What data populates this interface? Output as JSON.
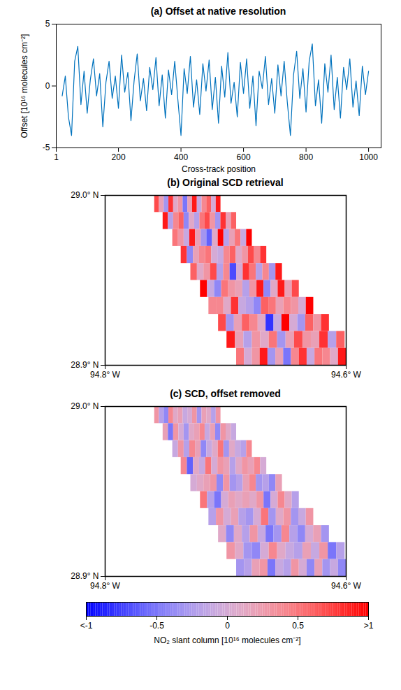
{
  "chart_data": [
    {
      "type": "line",
      "title": "(a) Offset at native resolution",
      "xlabel": "Cross-track position",
      "ylabel": "Offset [10¹⁶ molecules cm⁻²]",
      "color": "#0072bd",
      "x": [
        20,
        30,
        40,
        50,
        60,
        70,
        80,
        90,
        100,
        110,
        120,
        130,
        140,
        150,
        160,
        170,
        180,
        190,
        200,
        210,
        220,
        230,
        240,
        250,
        260,
        270,
        280,
        290,
        300,
        310,
        320,
        330,
        340,
        350,
        360,
        370,
        380,
        390,
        400,
        410,
        420,
        430,
        440,
        450,
        460,
        470,
        480,
        490,
        500,
        510,
        520,
        530,
        540,
        550,
        560,
        570,
        580,
        590,
        600,
        610,
        620,
        630,
        640,
        650,
        660,
        670,
        680,
        690,
        700,
        710,
        720,
        730,
        740,
        750,
        760,
        770,
        780,
        790,
        800,
        810,
        820,
        830,
        840,
        850,
        860,
        870,
        880,
        890,
        900,
        910,
        920,
        930,
        940,
        950,
        960,
        970,
        980,
        990,
        1000
      ],
      "values": [
        -0.8,
        0.8,
        -2.5,
        -4.0,
        2.0,
        3.2,
        -1.5,
        1.2,
        -2.2,
        0.5,
        2.2,
        -0.8,
        1.0,
        -3.3,
        0.3,
        2.0,
        -1.0,
        0.8,
        -1.8,
        2.5,
        -0.5,
        1.1,
        -2.8,
        0.4,
        2.6,
        -1.2,
        0.6,
        -2.0,
        1.5,
        -0.3,
        2.3,
        -1.6,
        0.9,
        -2.6,
        1.3,
        -0.7,
        2.0,
        -1.1,
        -4.0,
        1.4,
        -0.6,
        2.4,
        -1.7,
        0.5,
        -2.3,
        1.8,
        -0.4,
        2.1,
        -1.9,
        0.7,
        -3.0,
        1.6,
        -0.9,
        2.7,
        -1.4,
        0.3,
        -2.5,
        1.9,
        -0.6,
        2.2,
        -1.8,
        0.8,
        -3.2,
        1.2,
        -0.2,
        2.4,
        -1.5,
        0.6,
        -2.2,
        1.7,
        -0.8,
        2.0,
        -1.3,
        -4.0,
        0.9,
        2.8,
        -1.0,
        1.4,
        -2.1,
        2.0,
        3.4,
        -1.6,
        0.5,
        -3.0,
        1.8,
        -0.5,
        2.5,
        -1.9,
        0.7,
        -2.6,
        1.5,
        -0.3,
        2.2,
        -1.7,
        0.4,
        -2.4,
        1.6,
        -0.7,
        1.2
      ],
      "xlim": [
        1,
        1040
      ],
      "xticks": [
        1,
        200,
        400,
        600,
        800,
        1000
      ],
      "ylim": [
        -5,
        5
      ],
      "yticks": [
        -5,
        0,
        5
      ]
    },
    {
      "type": "heatmap",
      "title": "(b) Original SCD retrieval",
      "xlim": [
        -94.8,
        -94.6
      ],
      "ylim": [
        28.9,
        29.0
      ],
      "xticks": [
        {
          "value": -94.8,
          "label": "94.8° W"
        },
        {
          "value": -94.6,
          "label": "94.6° W"
        }
      ],
      "yticks": [
        {
          "value": 28.9,
          "label": "28.9° N"
        },
        {
          "value": 29.0,
          "label": "29.0° N"
        }
      ],
      "lat_edges": [
        29.0,
        28.99,
        28.98,
        28.97,
        28.96,
        28.95,
        28.94,
        28.93,
        28.92,
        28.91,
        28.9
      ],
      "lon_west": [
        -94.759,
        -94.752,
        -94.744,
        -94.737,
        -94.729,
        -94.721,
        -94.714,
        -94.706,
        -94.699,
        -94.691
      ],
      "lon_east": [
        -94.704,
        -94.691,
        -94.678,
        -94.666,
        -94.653,
        -94.639,
        -94.627,
        -94.614,
        -94.601,
        -94.6
      ],
      "cells": [
        [
          0.7,
          0.2,
          -0.3,
          0.8,
          0.1,
          0.3,
          -0.5,
          0.2,
          0.9,
          -0.1,
          0.4,
          0.6,
          0.0,
          0.9
        ],
        [
          0.9,
          -0.2,
          0.4,
          0.6,
          -0.4,
          0.1,
          -0.2,
          0.5,
          0.7,
          0.3,
          -0.3,
          0.8,
          0.2,
          0.6
        ],
        [
          0.5,
          0.3,
          -0.1,
          0.9,
          0.2,
          -0.3,
          -0.6,
          0.1,
          1.0,
          -0.2,
          0.2,
          0.5,
          -0.1,
          1.1
        ],
        [
          0.8,
          -0.4,
          0.2,
          0.4,
          0.5,
          0.0,
          -0.1,
          0.4,
          0.6,
          0.1,
          0.3,
          0.7,
          0.4,
          0.8
        ],
        [
          0.6,
          0.1,
          0.3,
          0.7,
          -0.2,
          0.4,
          -0.7,
          0.0,
          0.8,
          0.5,
          -0.2,
          0.4,
          -0.3,
          0.9
        ],
        [
          1.0,
          -0.1,
          -0.4,
          0.5,
          0.3,
          0.2,
          -0.2,
          0.3,
          0.9,
          -0.4,
          0.1,
          0.9,
          0.2,
          0.7
        ],
        [
          0.4,
          0.4,
          0.1,
          0.8,
          -0.1,
          -0.2,
          -0.4,
          0.6,
          0.5,
          0.2,
          0.4,
          0.3,
          0.0,
          1.0
        ],
        [
          0.7,
          -0.3,
          0.2,
          0.6,
          0.4,
          0.1,
          -0.8,
          -0.1,
          1.1,
          0.0,
          -0.3,
          0.6,
          0.3,
          0.8
        ],
        [
          0.9,
          0.2,
          -0.2,
          0.3,
          0.1,
          0.5,
          -0.3,
          0.2,
          0.7,
          0.3,
          0.2,
          0.8,
          -0.2,
          0.6
        ],
        [
          0.5,
          0.0,
          0.3,
          0.9,
          -0.3,
          0.2,
          -0.5,
          0.4,
          0.8,
          -0.1,
          0.5,
          0.4,
          0.1,
          0.9
        ]
      ]
    },
    {
      "type": "heatmap",
      "title": "(c) SCD, offset removed",
      "xlim": [
        -94.8,
        -94.6
      ],
      "ylim": [
        28.9,
        29.0
      ],
      "xticks": [
        {
          "value": -94.8,
          "label": "94.8° W"
        },
        {
          "value": -94.6,
          "label": "94.6° W"
        }
      ],
      "yticks": [
        {
          "value": 28.9,
          "label": "28.9° N"
        },
        {
          "value": 29.0,
          "label": "29.0° N"
        }
      ],
      "lat_edges": [
        29.0,
        28.99,
        28.98,
        28.97,
        28.96,
        28.95,
        28.94,
        28.93,
        28.92,
        28.91,
        28.9
      ],
      "lon_west": [
        -94.759,
        -94.752,
        -94.744,
        -94.737,
        -94.729,
        -94.721,
        -94.714,
        -94.706,
        -94.699,
        -94.691
      ],
      "lon_east": [
        -94.704,
        -94.691,
        -94.678,
        -94.666,
        -94.653,
        -94.639,
        -94.627,
        -94.614,
        -94.601,
        -94.6
      ],
      "cells": [
        [
          0.3,
          -0.2,
          -0.4,
          0.4,
          0.1,
          0.2,
          -0.1,
          0.0,
          0.3,
          -0.3,
          0.2,
          0.1,
          -0.2,
          0.3
        ],
        [
          0.2,
          -0.5,
          0.3,
          0.0,
          -0.3,
          0.1,
          0.2,
          0.4,
          -0.1,
          0.2,
          -0.4,
          0.3,
          0.1,
          -0.1
        ],
        [
          -0.1,
          0.3,
          -0.2,
          0.4,
          0.2,
          -0.4,
          -0.1,
          0.1,
          0.5,
          -0.3,
          0.1,
          -0.1,
          -0.2,
          0.4
        ],
        [
          0.4,
          -0.6,
          0.1,
          -0.1,
          0.5,
          0.0,
          0.3,
          0.2,
          -0.2,
          0.1,
          0.3,
          0.2,
          0.4,
          0.0
        ],
        [
          0.0,
          0.1,
          0.2,
          0.3,
          -0.4,
          0.3,
          -0.3,
          -0.2,
          0.2,
          0.4,
          -0.3,
          -0.2,
          -0.4,
          0.2
        ],
        [
          0.5,
          -0.2,
          -0.5,
          0.0,
          0.2,
          0.1,
          0.2,
          0.1,
          0.3,
          -0.5,
          0.0,
          0.4,
          0.1,
          -0.2
        ],
        [
          -0.2,
          0.3,
          0.0,
          0.2,
          -0.2,
          -0.3,
          0.0,
          0.5,
          -0.3,
          0.1,
          0.3,
          -0.3,
          -0.1,
          0.3
        ],
        [
          0.1,
          -0.4,
          0.1,
          -0.2,
          0.3,
          -0.1,
          -0.5,
          -0.3,
          0.4,
          -0.2,
          -0.4,
          0.0,
          0.2,
          -0.3
        ],
        [
          0.3,
          0.1,
          -0.3,
          -0.4,
          0.0,
          0.4,
          0.1,
          -0.1,
          -0.2,
          0.2,
          -0.1,
          0.3,
          -0.5,
          -0.2
        ],
        [
          -0.3,
          -0.2,
          0.2,
          0.3,
          -0.5,
          -0.1,
          -0.2,
          0.3,
          0.0,
          -0.4,
          0.2,
          -0.3,
          -0.1,
          -0.4
        ]
      ]
    }
  ],
  "colorbar": {
    "label": "NO₂ slant column [10¹⁶ molecules cm⁻²]",
    "lim": [
      -1,
      1
    ],
    "ticks": [
      {
        "value": -1,
        "label": "<-1"
      },
      -0.5,
      0,
      0.5,
      {
        "value": 1,
        "label": ">1"
      }
    ],
    "colors": [
      "#0000ff",
      "#ffffff",
      "#ff0000"
    ]
  }
}
